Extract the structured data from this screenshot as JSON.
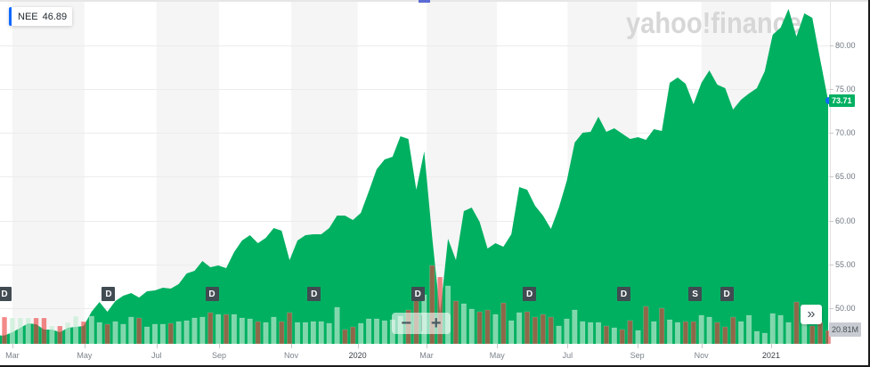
{
  "symbol_tag": {
    "symbol": "NEE",
    "value": "46.89"
  },
  "watermark": "yahoo!finance",
  "price_marker": {
    "value": "73.71"
  },
  "volume_marker": {
    "value": "20.81M"
  },
  "controls": {
    "zoom_out": "−",
    "zoom_in": "+",
    "expand": "»"
  },
  "colors": {
    "area": "#00b061",
    "band": "#f5f5f5",
    "grid": "#ececec",
    "up_volume": "rgba(194,236,209,0.66)",
    "down_volume": "rgba(235,57,57,0.6)",
    "event_marker": "#414b52",
    "accent": "#0f69ff"
  },
  "chart_data": {
    "type": "area",
    "title": "NEE",
    "xlabel": "",
    "ylabel": "",
    "ylim": [
      46.5,
      85.0
    ],
    "grid": true,
    "legend": "none",
    "y_ticks": [
      "50.00",
      "55.00",
      "60.00",
      "65.00",
      "70.00",
      "75.00",
      "80.00"
    ],
    "x_ticks": [
      {
        "label": "Mar",
        "index": 1.0,
        "year": false
      },
      {
        "label": "May",
        "index": 10.1,
        "year": false
      },
      {
        "label": "Jul",
        "index": 19.2,
        "year": false
      },
      {
        "label": "Sep",
        "index": 27.1,
        "year": false
      },
      {
        "label": "Nov",
        "index": 36.2,
        "year": false
      },
      {
        "label": "2020",
        "index": 44.6,
        "year": true
      },
      {
        "label": "Mar",
        "index": 53.3,
        "year": false
      },
      {
        "label": "May",
        "index": 62.2,
        "year": false
      },
      {
        "label": "Jul",
        "index": 71.1,
        "year": false
      },
      {
        "label": "Sep",
        "index": 79.9,
        "year": false
      },
      {
        "label": "Nov",
        "index": 88.0,
        "year": false
      },
      {
        "label": "2021",
        "index": 96.8,
        "year": true
      }
    ],
    "interval": "weekly",
    "start_price": 46.89,
    "last_price": 73.71,
    "last_volume": "20.81M",
    "prices": [
      46.89,
      47.25,
      47.76,
      48.27,
      48.17,
      47.56,
      47.56,
      47.25,
      47.76,
      47.86,
      47.97,
      49.59,
      50.71,
      49.59,
      50.81,
      51.42,
      51.73,
      51.22,
      51.93,
      52.03,
      52.34,
      52.24,
      52.75,
      53.97,
      54.27,
      55.39,
      54.68,
      54.88,
      54.58,
      56.41,
      57.73,
      58.34,
      57.42,
      58.03,
      59.15,
      58.85,
      55.49,
      57.73,
      58.34,
      58.44,
      58.44,
      59.15,
      60.58,
      60.58,
      60.07,
      60.88,
      63.32,
      65.86,
      66.98,
      67.29,
      69.63,
      69.32,
      63.52,
      67.9,
      58.14,
      49.39,
      57.93,
      55.49,
      61.08,
      61.49,
      59.86,
      56.81,
      57.42,
      57.02,
      58.44,
      63.83,
      63.52,
      61.69,
      60.58,
      59.05,
      61.49,
      64.54,
      68.91,
      70.03,
      70.14,
      71.86,
      70.14,
      70.54,
      69.93,
      69.32,
      69.53,
      69.22,
      70.44,
      70.24,
      75.73,
      76.34,
      75.63,
      73.29,
      75.73,
      77.15,
      75.53,
      75.12,
      72.68,
      73.8,
      74.51,
      75.12,
      77.05,
      81.22,
      82.03,
      84.17,
      81.02,
      83.66,
      83.15,
      78.37,
      73.71
    ],
    "volumes_m": [
      41.6,
      40.2,
      40.2,
      40.2,
      40.2,
      40.2,
      27.7,
      27.7,
      33.3,
      43.0,
      34.7,
      43.0,
      33.3,
      30.5,
      34.7,
      30.5,
      41.6,
      40.2,
      26.4,
      30.5,
      30.5,
      31.9,
      34.7,
      36.1,
      40.2,
      41.6,
      48.5,
      45.8,
      45.8,
      45.8,
      40.2,
      38.8,
      34.7,
      33.3,
      41.6,
      34.7,
      48.5,
      33.3,
      33.3,
      34.7,
      34.7,
      31.9,
      56.9,
      22.2,
      26.4,
      31.9,
      38.8,
      38.8,
      36.1,
      37.4,
      43.0,
      52.7,
      69.4,
      76.3,
      122.1,
      104.0,
      90.2,
      66.6,
      62.4,
      54.1,
      49.9,
      52.7,
      45.8,
      63.8,
      36.1,
      48.5,
      49.9,
      41.6,
      45.8,
      41.6,
      27.7,
      38.8,
      52.7,
      34.7,
      33.3,
      33.3,
      27.7,
      25.0,
      22.2,
      36.1,
      20.8,
      58.3,
      34.7,
      55.5,
      37.4,
      33.3,
      34.7,
      34.7,
      44.4,
      41.6,
      33.3,
      26.4,
      41.6,
      34.7,
      44.4,
      19.4,
      16.6,
      47.2,
      44.4,
      33.3,
      65.2,
      33.3,
      27.7,
      33.3,
      20.81
    ],
    "volume_direction": [
      "down",
      "up",
      "up",
      "up",
      "down",
      "down",
      "up",
      "down",
      "up",
      "up",
      "down",
      "up",
      "up",
      "down",
      "up",
      "up",
      "up",
      "down",
      "up",
      "up",
      "up",
      "down",
      "up",
      "up",
      "up",
      "up",
      "down",
      "up",
      "down",
      "up",
      "up",
      "up",
      "down",
      "up",
      "up",
      "down",
      "down",
      "up",
      "up",
      "up",
      "up",
      "up",
      "up",
      "down",
      "down",
      "up",
      "up",
      "up",
      "up",
      "up",
      "up",
      "down",
      "down",
      "up",
      "down",
      "down",
      "up",
      "down",
      "up",
      "up",
      "down",
      "down",
      "up",
      "down",
      "up",
      "up",
      "down",
      "down",
      "down",
      "down",
      "up",
      "up",
      "up",
      "up",
      "up",
      "up",
      "down",
      "up",
      "down",
      "down",
      "up",
      "down",
      "up",
      "down",
      "up",
      "up",
      "down",
      "down",
      "up",
      "up",
      "down",
      "down",
      "down",
      "up",
      "up",
      "up",
      "up",
      "up",
      "up",
      "up",
      "down",
      "up",
      "down",
      "down",
      "down"
    ],
    "events": [
      {
        "type": "D",
        "index": 0.0
      },
      {
        "type": "D",
        "index": 13.15
      },
      {
        "type": "D",
        "index": 26.2
      },
      {
        "type": "D",
        "index": 39.1
      },
      {
        "type": "D",
        "index": 52.2
      },
      {
        "type": "D",
        "index": 66.3
      },
      {
        "type": "D",
        "index": 78.2
      },
      {
        "type": "S",
        "index": 87.2
      },
      {
        "type": "D",
        "index": 91.2
      }
    ]
  }
}
